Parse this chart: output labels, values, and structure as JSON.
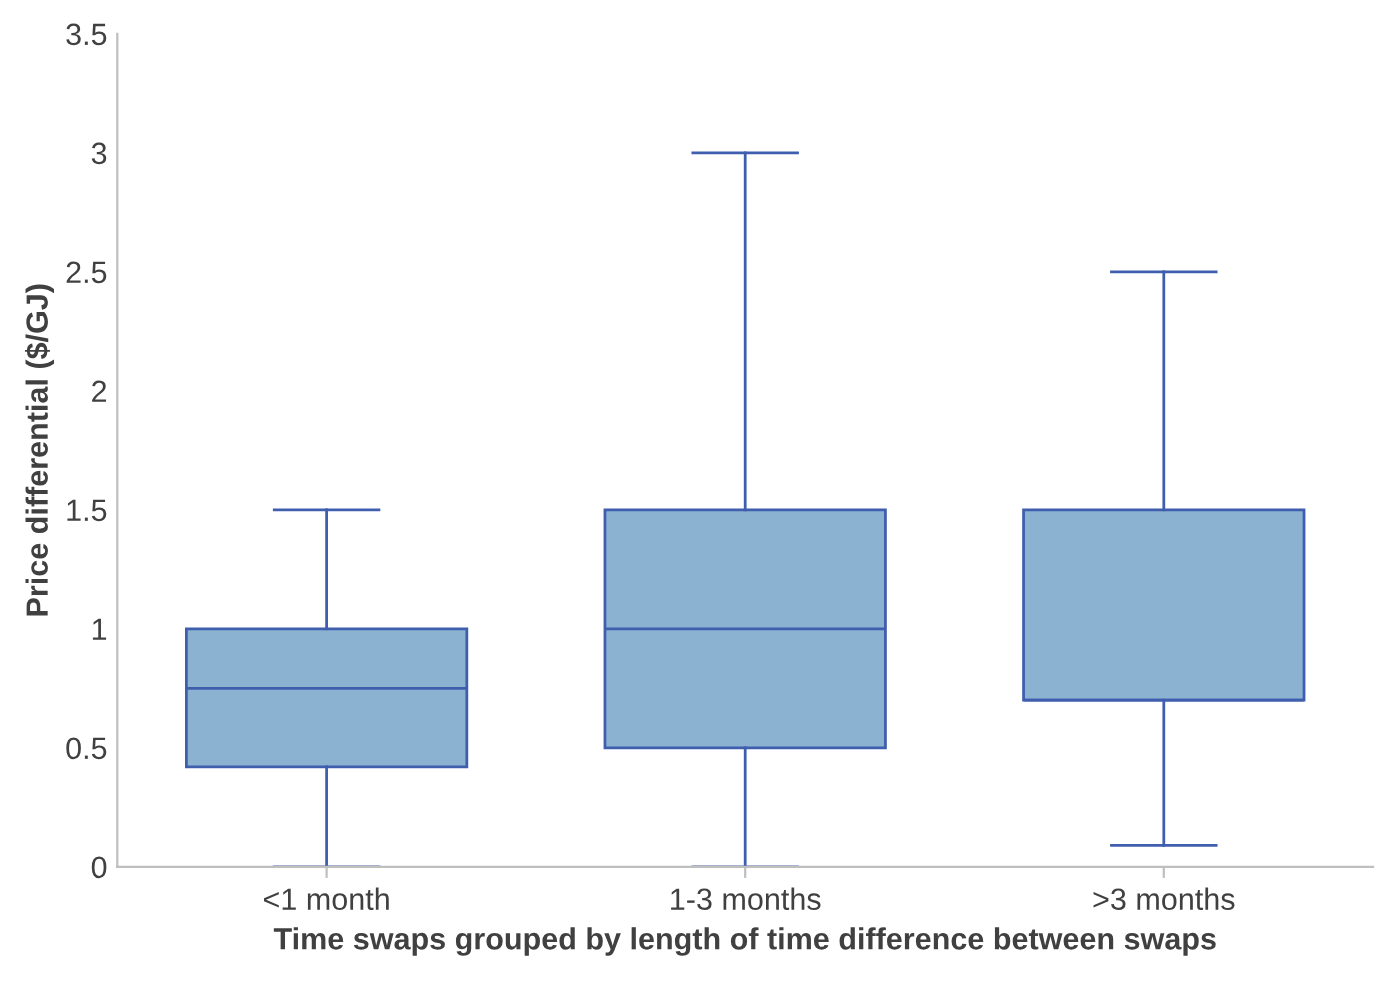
{
  "chart_data": {
    "type": "box",
    "xlabel": "Time swaps grouped by length of time difference between swaps",
    "ylabel": "Price differential ($/GJ)",
    "categories": [
      "<1 month",
      "1-3 months",
      ">3 months"
    ],
    "boxes": [
      {
        "low": 0,
        "q1": 0.42,
        "median": 0.75,
        "q3": 1.0,
        "high": 1.5
      },
      {
        "low": 0,
        "q1": 0.5,
        "median": 1.0,
        "q3": 1.5,
        "high": 3.0
      },
      {
        "low": 0.09,
        "q1": 0.7,
        "median": 0.7,
        "q3": 1.5,
        "high": 2.5
      }
    ],
    "color": "#8cb2d2",
    "ylim": [
      0,
      3.5
    ],
    "yticks": [
      0,
      0.5,
      1,
      1.5,
      2,
      2.5,
      3,
      3.5
    ],
    "grid": false
  }
}
